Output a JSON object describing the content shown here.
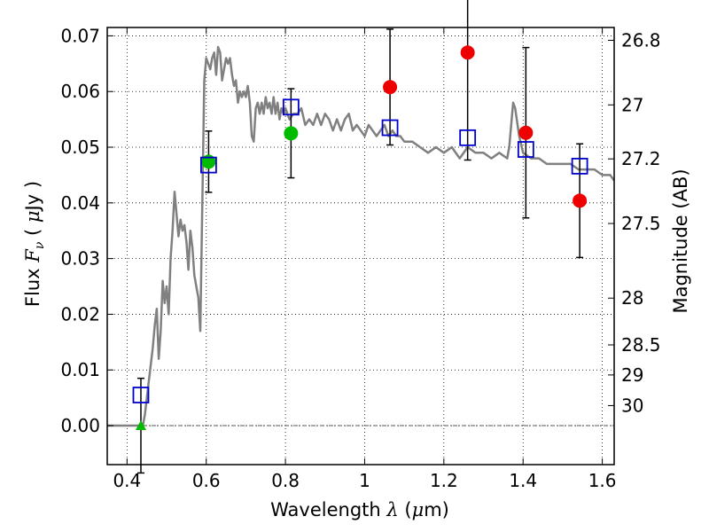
{
  "chart_data": {
    "type": "scatter",
    "xlabel": {
      "prefix": "Wavelength ",
      "symbol": "λ",
      "unit_open": " (",
      "unit_mu": "μ",
      "unit_rest": "m)"
    },
    "ylabel": {
      "prefix": "Flux ",
      "symbol": "F",
      "sub": "ν",
      "unit_open": " ( ",
      "unit_mu": "μ",
      "unit_rest": "Jy )"
    },
    "ylabel_right": "Magnitude (AB)",
    "xlim": [
      0.35,
      1.63
    ],
    "ylim": [
      -0.007,
      0.0715
    ],
    "grid": true,
    "legend": "none",
    "x_ticks": [
      0.4,
      0.6,
      0.8,
      1.0,
      1.2,
      1.4,
      1.6
    ],
    "x_tick_labels": [
      "0.4",
      "0.6",
      "0.8",
      "1",
      "1.2",
      "1.4",
      "1.6"
    ],
    "y_ticks": [
      0.0,
      0.01,
      0.02,
      0.03,
      0.04,
      0.05,
      0.06,
      0.07
    ],
    "y_tick_labels": [
      "0.00",
      "0.01",
      "0.02",
      "0.03",
      "0.04",
      "0.05",
      "0.06",
      "0.07"
    ],
    "right_ticks": [
      {
        "label": "26.8",
        "flux": 0.0692
      },
      {
        "label": "27",
        "flux": 0.0576
      },
      {
        "label": "27.2",
        "flux": 0.0479
      },
      {
        "label": "27.5",
        "flux": 0.0363
      },
      {
        "label": "28",
        "flux": 0.0229
      },
      {
        "label": "28.5",
        "flux": 0.0145
      },
      {
        "label": "29",
        "flux": 0.0091
      },
      {
        "label": "30",
        "flux": 0.0036
      }
    ],
    "zero_line": {
      "y": 0.0,
      "color": "#555555"
    },
    "series": [
      {
        "kind": "model_sed",
        "color": "#808080",
        "x": [
          0.35,
          0.44,
          0.445,
          0.455,
          0.465,
          0.47,
          0.475,
          0.48,
          0.485,
          0.49,
          0.495,
          0.5,
          0.505,
          0.51,
          0.515,
          0.52,
          0.525,
          0.53,
          0.535,
          0.54,
          0.545,
          0.55,
          0.555,
          0.56,
          0.565,
          0.57,
          0.575,
          0.58,
          0.585,
          0.59,
          0.595,
          0.6,
          0.605,
          0.61,
          0.615,
          0.62,
          0.625,
          0.63,
          0.635,
          0.64,
          0.645,
          0.65,
          0.655,
          0.66,
          0.665,
          0.67,
          0.675,
          0.68,
          0.685,
          0.69,
          0.695,
          0.7,
          0.705,
          0.71,
          0.715,
          0.72,
          0.725,
          0.73,
          0.735,
          0.74,
          0.745,
          0.75,
          0.755,
          0.76,
          0.765,
          0.77,
          0.775,
          0.78,
          0.785,
          0.79,
          0.795,
          0.8,
          0.81,
          0.82,
          0.83,
          0.84,
          0.85,
          0.86,
          0.87,
          0.88,
          0.89,
          0.9,
          0.91,
          0.92,
          0.93,
          0.94,
          0.95,
          0.96,
          0.97,
          0.98,
          0.99,
          1.0,
          1.01,
          1.02,
          1.03,
          1.04,
          1.05,
          1.06,
          1.07,
          1.08,
          1.09,
          1.1,
          1.12,
          1.14,
          1.16,
          1.18,
          1.2,
          1.22,
          1.24,
          1.26,
          1.28,
          1.3,
          1.32,
          1.34,
          1.36,
          1.365,
          1.37,
          1.375,
          1.38,
          1.39,
          1.4,
          1.42,
          1.44,
          1.46,
          1.48,
          1.5,
          1.52,
          1.54,
          1.56,
          1.58,
          1.6,
          1.62,
          1.63
        ],
        "y": [
          0.0,
          0.0,
          0.002,
          0.008,
          0.014,
          0.018,
          0.021,
          0.012,
          0.017,
          0.026,
          0.022,
          0.025,
          0.02,
          0.03,
          0.035,
          0.042,
          0.038,
          0.034,
          0.037,
          0.035,
          0.036,
          0.033,
          0.028,
          0.035,
          0.032,
          0.027,
          0.025,
          0.023,
          0.017,
          0.04,
          0.062,
          0.066,
          0.065,
          0.064,
          0.066,
          0.067,
          0.063,
          0.068,
          0.067,
          0.062,
          0.064,
          0.066,
          0.065,
          0.066,
          0.063,
          0.061,
          0.062,
          0.058,
          0.06,
          0.059,
          0.06,
          0.059,
          0.061,
          0.058,
          0.052,
          0.051,
          0.057,
          0.058,
          0.056,
          0.058,
          0.056,
          0.059,
          0.057,
          0.058,
          0.056,
          0.059,
          0.056,
          0.058,
          0.055,
          0.057,
          0.056,
          0.057,
          0.055,
          0.056,
          0.056,
          0.057,
          0.054,
          0.055,
          0.054,
          0.056,
          0.054,
          0.056,
          0.055,
          0.053,
          0.055,
          0.053,
          0.055,
          0.056,
          0.053,
          0.054,
          0.053,
          0.052,
          0.054,
          0.053,
          0.052,
          0.053,
          0.054,
          0.052,
          0.053,
          0.052,
          0.052,
          0.051,
          0.051,
          0.05,
          0.049,
          0.05,
          0.049,
          0.05,
          0.048,
          0.05,
          0.049,
          0.049,
          0.048,
          0.049,
          0.048,
          0.05,
          0.054,
          0.058,
          0.057,
          0.052,
          0.049,
          0.048,
          0.048,
          0.047,
          0.047,
          0.047,
          0.047,
          0.046,
          0.046,
          0.046,
          0.045,
          0.045,
          0.044
        ]
      },
      {
        "kind": "open_squares",
        "color": "#0000cc",
        "x": [
          0.435,
          0.606,
          0.814,
          1.064,
          1.26,
          1.407,
          1.543
        ],
        "y": [
          0.0055,
          0.0468,
          0.0572,
          0.0535,
          0.0517,
          0.0496,
          0.0466
        ]
      },
      {
        "kind": "green_circles",
        "color": "#00bb00",
        "x": [
          0.606,
          0.814
        ],
        "y": [
          0.0474,
          0.0525
        ],
        "err": [
          0.0055,
          0.008
        ]
      },
      {
        "kind": "red_circles",
        "color": "#ee0000",
        "x": [
          1.064,
          1.26,
          1.407,
          1.543
        ],
        "y": [
          0.0608,
          0.067,
          0.0526,
          0.0404
        ],
        "err": [
          0.0104,
          0.0193,
          0.0153,
          0.0102
        ]
      },
      {
        "kind": "upper_limit_triangle",
        "color": "#00bb00",
        "x": [
          0.435
        ],
        "y": [
          0.0
        ],
        "err": [
          0.0085
        ]
      }
    ]
  }
}
